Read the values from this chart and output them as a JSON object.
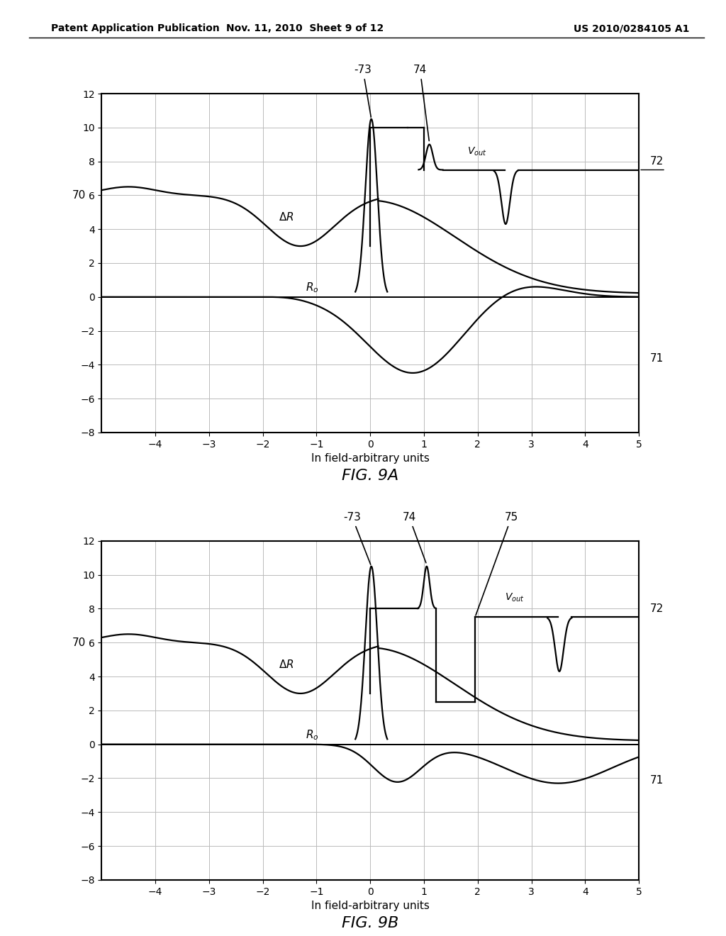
{
  "title_left": "Patent Application Publication",
  "title_center": "Nov. 11, 2010  Sheet 9 of 12",
  "title_right": "US 2010/0284105 A1",
  "fig_a_title": "FIG. 9A",
  "fig_b_title": "FIG. 9B",
  "xlabel": "In field-arbitrary units",
  "xlim": [
    -5,
    5
  ],
  "ylim": [
    -8,
    12
  ],
  "yticks": [
    -8,
    -6,
    -4,
    -2,
    0,
    2,
    4,
    6,
    8,
    10,
    12
  ],
  "xticks": [
    -4,
    -3,
    -2,
    -1,
    0,
    1,
    2,
    3,
    4,
    5
  ],
  "background_color": "#ffffff",
  "line_color": "#000000",
  "grid_color": "#bbbbbb"
}
